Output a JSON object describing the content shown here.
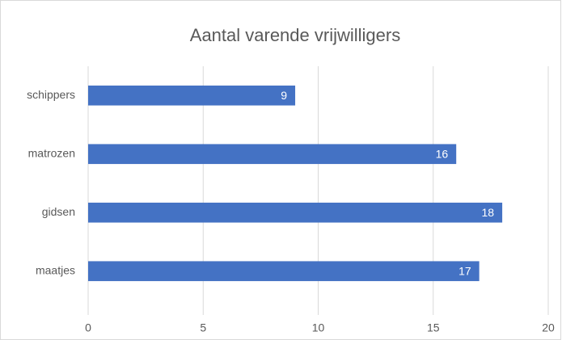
{
  "chart_data": {
    "type": "bar",
    "orientation": "horizontal",
    "title": "Aantal varende vrijwilligers",
    "categories": [
      "schippers",
      "matrozen",
      "gidsen",
      "maatjes"
    ],
    "values": [
      9,
      16,
      18,
      17
    ],
    "color": "#4472c4",
    "xlim": [
      0,
      20
    ],
    "xticks": [
      0,
      5,
      10,
      15,
      20
    ],
    "grid": true
  }
}
